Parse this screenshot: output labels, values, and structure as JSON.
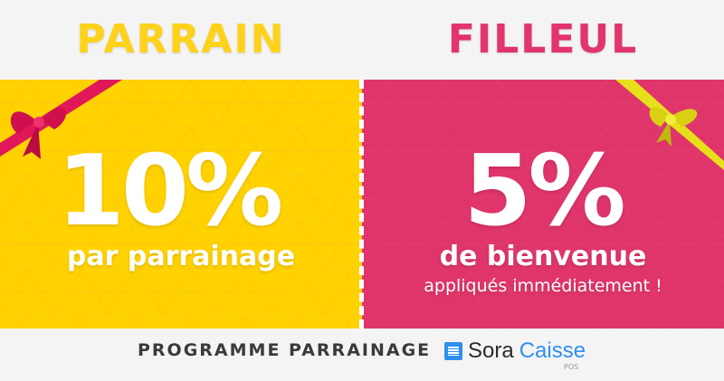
{
  "header": {
    "left_title": "PARRAIN",
    "right_title": "FILLEUL"
  },
  "left": {
    "percent": "10%",
    "subtitle": "par parrainage",
    "color": "#ffd200"
  },
  "right": {
    "percent": "5%",
    "subtitle": "de bienvenue",
    "note": "appliqués immédiatement !",
    "color": "#e0356a"
  },
  "footer": {
    "program": "PROGRAMME PARRAINAGE",
    "brand_a": "Sora",
    "brand_b": "Caisse",
    "brand_sub": "POS"
  }
}
